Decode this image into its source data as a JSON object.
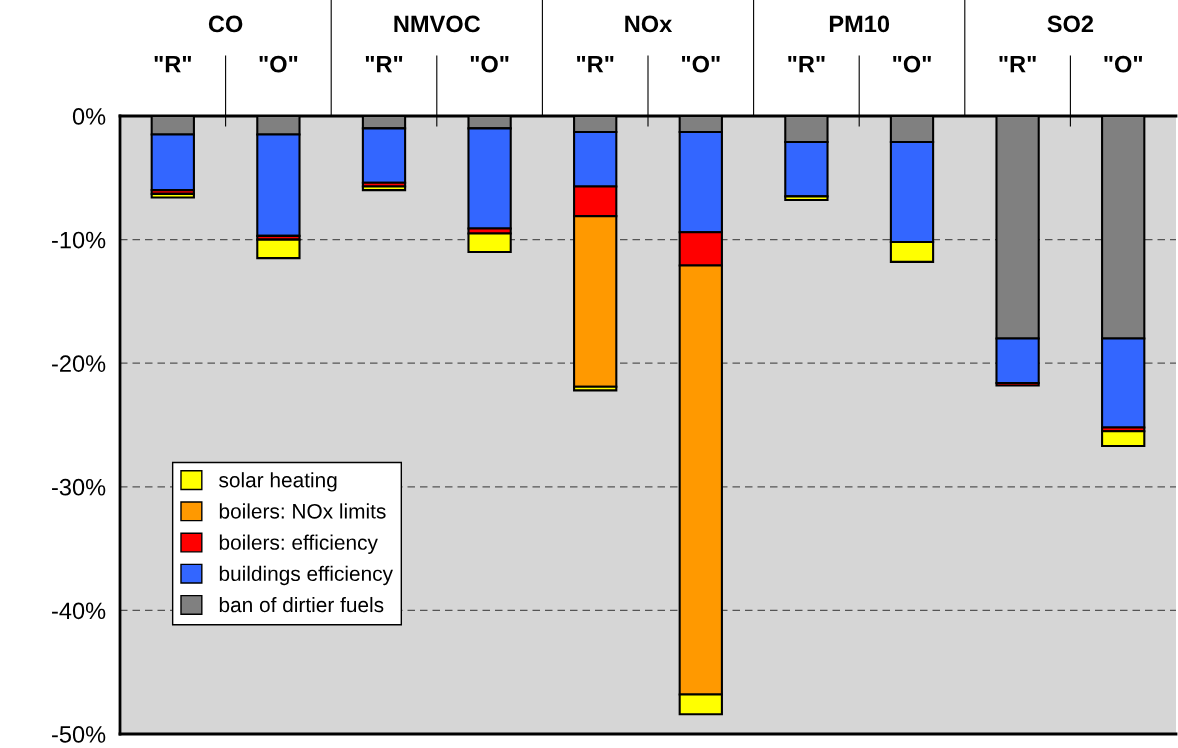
{
  "chart_data": {
    "type": "bar",
    "stacked": true,
    "categories": [
      "\"R\"",
      "\"O\"",
      "\"R\"",
      "\"O\"",
      "\"R\"",
      "\"O\"",
      "\"R\"",
      "\"O\"",
      "\"R\"",
      "\"O\""
    ],
    "annotations": [
      "CO",
      "NMVOC",
      "NOx",
      "PM10",
      "SO2"
    ],
    "series": [
      {
        "name": "ban of dirtier fuels",
        "color": "#808080",
        "values": [
          -1.5,
          -1.5,
          -1.0,
          -1.0,
          -1.3,
          -1.3,
          -2.1,
          -2.1,
          -18.0,
          -18.0
        ]
      },
      {
        "name": "buildings efficiency",
        "color": "#3366ff",
        "values": [
          -4.5,
          -8.2,
          -4.4,
          -8.1,
          -4.4,
          -8.1,
          -4.4,
          -8.1,
          -3.6,
          -7.2
        ]
      },
      {
        "name": "boilers: efficiency",
        "color": "#ff0000",
        "values": [
          -0.3,
          -0.3,
          -0.3,
          -0.4,
          -2.4,
          -2.7,
          null,
          null,
          -0.2,
          -0.3
        ]
      },
      {
        "name": "boilers: NOx limits",
        "color": "#ff9900",
        "values": [
          null,
          null,
          null,
          null,
          -13.8,
          -34.7,
          null,
          null,
          null,
          null
        ]
      },
      {
        "name": "solar heating",
        "color": "#ffff00",
        "values": [
          -0.3,
          -1.5,
          -0.3,
          -1.5,
          -0.3,
          -1.6,
          -0.3,
          -1.6,
          null,
          -1.2
        ]
      }
    ],
    "ylim": [
      -50,
      0
    ],
    "yticks": [
      {
        "value": 0,
        "label": "0%"
      },
      {
        "value": -10,
        "label": "-10%"
      },
      {
        "value": -20,
        "label": "-20%"
      },
      {
        "value": -30,
        "label": "-30%"
      },
      {
        "value": -40,
        "label": "-40%"
      },
      {
        "value": -50,
        "label": "-50%"
      }
    ],
    "grid": "y",
    "legend": "bottom left"
  }
}
